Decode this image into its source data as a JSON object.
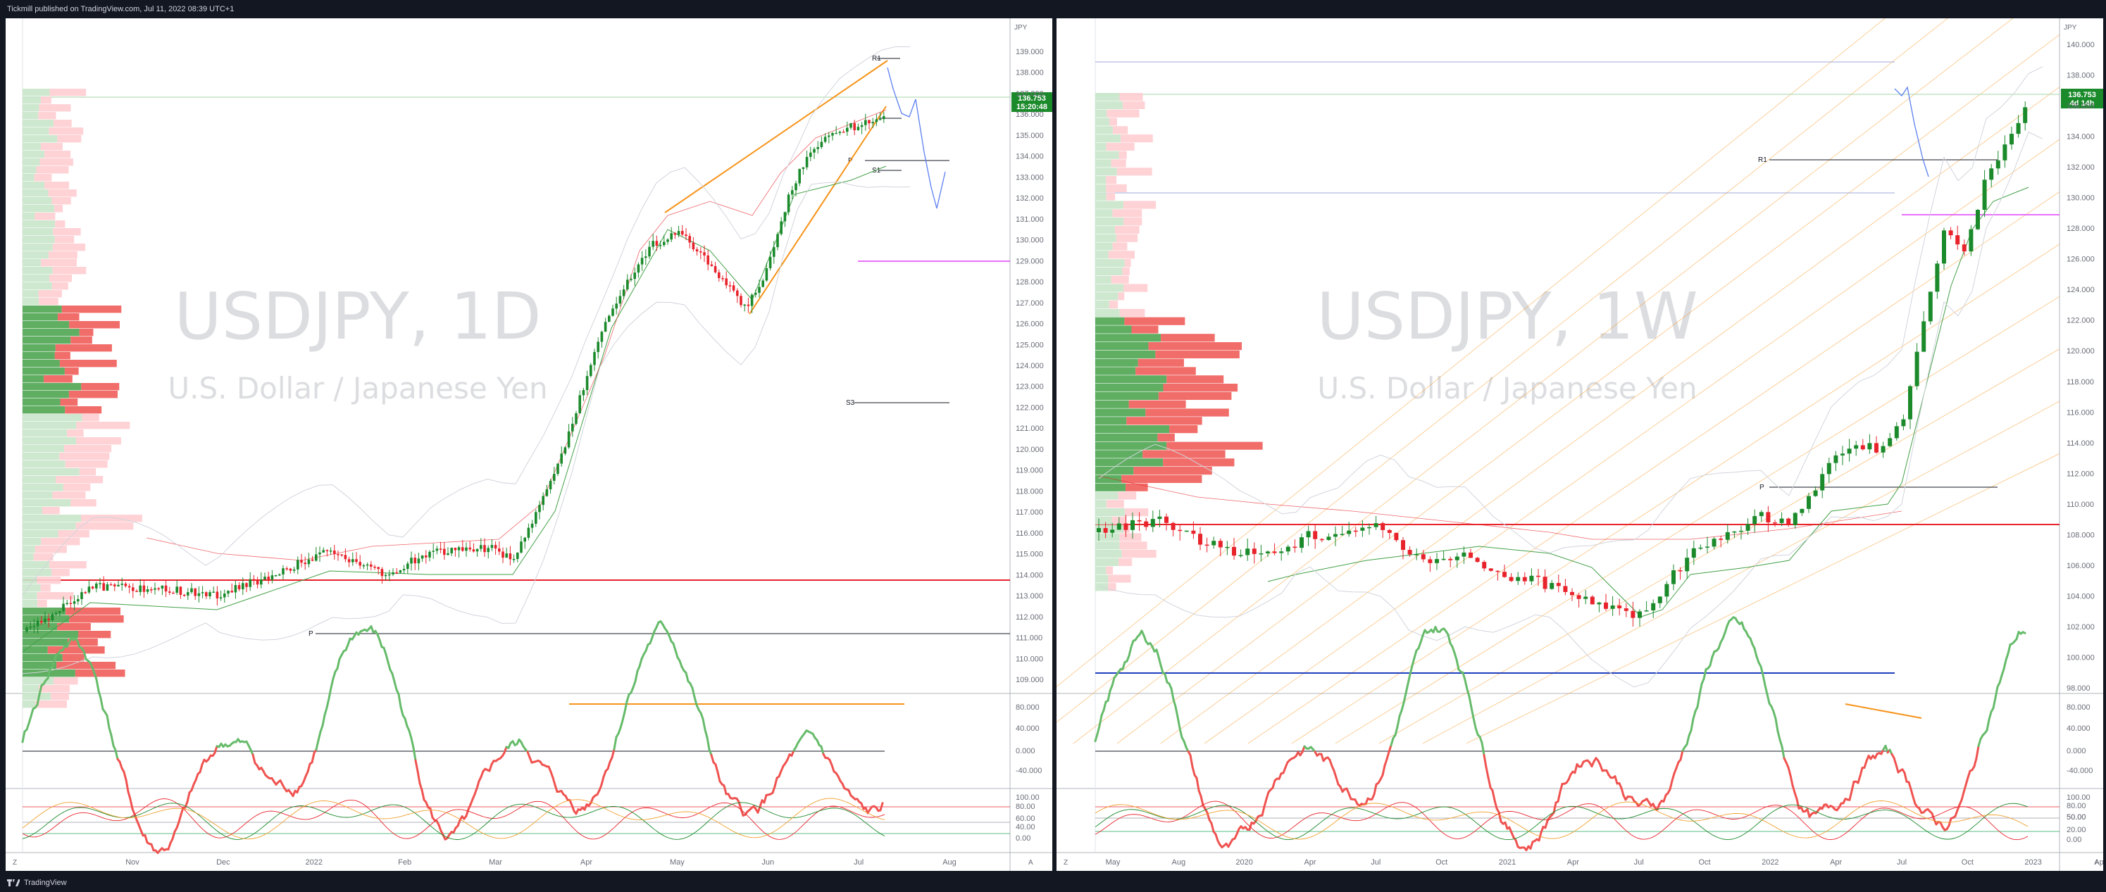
{
  "publisher_line": "Tickmill published on TradingView.com, Jul 11, 2022 08:39 UTC+1",
  "footer_brand": "TradingView",
  "colors": {
    "up": "#26a69a",
    "bull": "#1b8a2b",
    "bear": "#e8232b",
    "orange": "#f7931a",
    "blue": "#5b7ff0",
    "magenta": "#e040fb",
    "black": "#131722"
  },
  "left": {
    "symbol_watermark": "USDJPY, 1D",
    "name_watermark": "U.S. Dollar / Japanese Yen",
    "currency": "JPY",
    "price_tag": "136.753",
    "price_timer": "15:20:48",
    "price_ticks": [
      "139.000",
      "138.000",
      "137.000",
      "136.000",
      "135.000",
      "134.000",
      "133.000",
      "132.000",
      "131.000",
      "130.000",
      "129.000",
      "128.000",
      "127.000",
      "126.000",
      "125.000",
      "124.000",
      "123.000",
      "122.000",
      "121.000",
      "120.000",
      "119.000",
      "118.000",
      "117.000",
      "116.000",
      "115.000",
      "114.000",
      "113.000",
      "112.000",
      "111.000",
      "110.000",
      "109.000"
    ],
    "time_ticks": [
      "Nov",
      "Dec",
      "2022",
      "Feb",
      "Mar",
      "Apr",
      "May",
      "Jun",
      "Jul",
      "Aug"
    ],
    "osc1_ticks": [
      "80.000",
      "40.000",
      "0.000",
      "-40.000"
    ],
    "osc2_ticks": [
      "100.00",
      "80.00",
      "60.00",
      "40.00",
      "0.00"
    ],
    "labels": {
      "r1": "R1",
      "p_upper": "P",
      "s1": "S1",
      "s3": "S3",
      "p_lower": "P"
    },
    "corner_z": "Z",
    "corner_a": "A"
  },
  "right": {
    "symbol_watermark": "USDJPY, 1W",
    "name_watermark": "U.S. Dollar / Japanese Yen",
    "currency": "JPY",
    "price_tag": "136.753",
    "price_timer": "4d 14h",
    "price_ticks": [
      "140.000",
      "138.000",
      "136.000",
      "134.000",
      "132.000",
      "130.000",
      "128.000",
      "126.000",
      "124.000",
      "122.000",
      "120.000",
      "118.000",
      "116.000",
      "114.000",
      "112.000",
      "110.000",
      "108.000",
      "106.000",
      "104.000",
      "102.000",
      "100.000",
      "98.000"
    ],
    "time_ticks": [
      "May",
      "Aug",
      "2020",
      "Apr",
      "Jul",
      "Oct",
      "2021",
      "Apr",
      "Jul",
      "Oct",
      "2022",
      "Apr",
      "Jul",
      "Oct",
      "2023",
      "Ap"
    ],
    "osc1_ticks": [
      "80.000",
      "40.000",
      "0.000",
      "-40.000"
    ],
    "osc2_ticks": [
      "100.00",
      "50.00",
      "0.00"
    ],
    "osc2_right_ticks": [
      "80.00",
      "50.00",
      "20.00"
    ],
    "labels": {
      "r1": "R1",
      "p": "P"
    },
    "corner_z": "Z",
    "corner_a": "A"
  }
}
